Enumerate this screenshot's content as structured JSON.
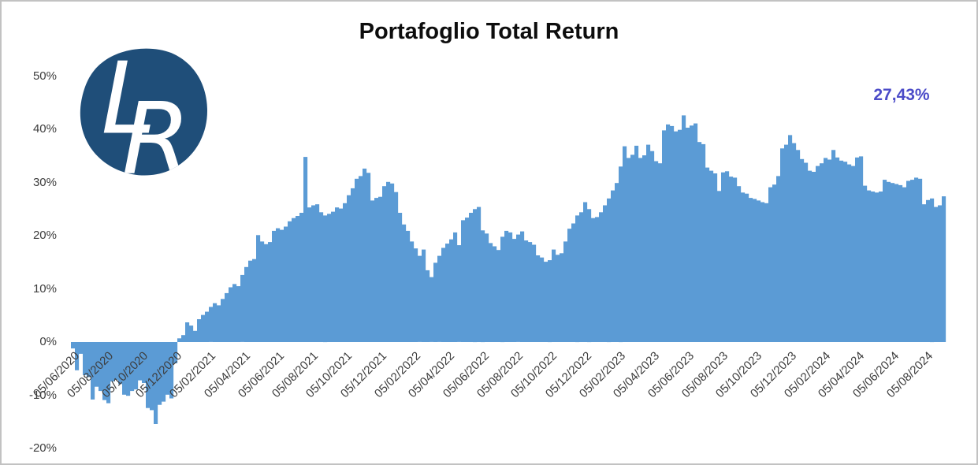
{
  "header": {
    "title": "Portafoglio Total Return"
  },
  "logo": {
    "letter_l": "L",
    "letter_r": "R",
    "background_color": "#1F4E79",
    "letter_color": "#FFFFFF"
  },
  "annotation": {
    "final_return_label": "27,43%",
    "final_return_value": 27.43,
    "color": "#4B4BC8"
  },
  "chart_data": {
    "type": "bar",
    "title": "Portafoglio Total Return",
    "ylabel": "",
    "xlabel": "",
    "ylim": [
      -20,
      50
    ],
    "grid": false,
    "legend": "none",
    "bar_color": "#5B9BD5",
    "axis_text_color": "#3d3d3d",
    "y_tick_values": [
      50,
      40,
      30,
      20,
      10,
      0,
      -10,
      -20
    ],
    "y_tick_labels": [
      "50%",
      "40%",
      "30%",
      "20%",
      "10%",
      "0%",
      "-10%",
      "-20%"
    ],
    "x_tick_labels": [
      "05/06/2020",
      "05/08/2020",
      "05/10/2020",
      "05/12/2020",
      "05/02/2021",
      "05/04/2021",
      "05/06/2021",
      "05/08/2021",
      "05/10/2021",
      "05/12/2021",
      "05/02/2022",
      "05/04/2022",
      "05/06/2022",
      "05/08/2022",
      "05/10/2022",
      "05/12/2022",
      "05/02/2023",
      "05/04/2023",
      "05/06/2023",
      "05/08/2023",
      "05/10/2023",
      "05/12/2023",
      "05/02/2024",
      "05/04/2024",
      "05/06/2024",
      "05/08/2024"
    ],
    "series": [
      {
        "name": "Portafoglio Total Return (%)",
        "sampling": "circa settimanale, giu 2020 - set 2024",
        "values": [
          -1.2,
          -5.3,
          -2.2,
          -6.2,
          -6.6,
          -10.8,
          -8.4,
          -9.2,
          -10.9,
          -11.5,
          -7.4,
          -7.1,
          -7.9,
          -9.9,
          -10.1,
          -9.2,
          -8.9,
          -7.2,
          -7.7,
          -12.4,
          -12.8,
          -15.4,
          -11.8,
          -11.2,
          -9.9,
          -10.6,
          -4.0,
          0.7,
          1.3,
          3.7,
          3.1,
          2.1,
          4.3,
          5.1,
          5.7,
          6.6,
          7.3,
          6.9,
          8.1,
          9.2,
          10.3,
          10.9,
          10.5,
          12.6,
          14.1,
          15.3,
          15.6,
          20.1,
          18.9,
          18.4,
          18.8,
          20.9,
          21.4,
          21.1,
          21.7,
          22.7,
          23.3,
          23.7,
          24.3,
          34.8,
          25.3,
          25.7,
          25.9,
          24.4,
          23.8,
          24.1,
          24.5,
          25.3,
          25.1,
          26.1,
          27.6,
          28.9,
          30.7,
          31.2,
          32.6,
          31.8,
          26.6,
          27.1,
          27.3,
          29.3,
          30.1,
          29.8,
          28.2,
          24.3,
          22.1,
          20.9,
          18.9,
          17.6,
          16.2,
          17.4,
          13.5,
          12.2,
          14.9,
          16.2,
          17.7,
          18.5,
          19.3,
          20.6,
          18.2,
          22.9,
          23.4,
          24.3,
          25.0,
          25.4,
          21.0,
          20.4,
          18.6,
          18.0,
          17.3,
          19.8,
          20.9,
          20.6,
          19.4,
          20.2,
          20.8,
          19.1,
          18.8,
          18.3,
          16.3,
          15.9,
          15.1,
          15.4,
          17.4,
          16.4,
          16.7,
          18.9,
          21.3,
          22.3,
          23.8,
          24.4,
          26.3,
          25.0,
          23.3,
          23.5,
          24.4,
          25.7,
          27.0,
          28.5,
          29.9,
          33.0,
          36.8,
          34.6,
          35.2,
          36.9,
          34.6,
          35.1,
          37.1,
          35.9,
          34.0,
          33.6,
          39.8,
          40.9,
          40.6,
          39.6,
          39.9,
          42.6,
          40.3,
          40.7,
          41.1,
          37.6,
          37.2,
          32.8,
          32.2,
          31.7,
          28.4,
          31.9,
          32.1,
          31.1,
          30.9,
          29.3,
          28.1,
          27.9,
          27.1,
          26.9,
          26.6,
          26.3,
          26.1,
          29.1,
          29.6,
          31.2,
          36.4,
          37.1,
          38.9,
          37.4,
          36.1,
          34.4,
          33.7,
          32.2,
          32.0,
          33.1,
          33.6,
          34.6,
          34.3,
          36.1,
          34.7,
          34.1,
          33.9,
          33.4,
          33.1,
          34.7,
          34.9,
          29.4,
          28.5,
          28.3,
          28.1,
          28.3,
          30.5,
          30.1,
          29.9,
          29.7,
          29.5,
          29.1,
          30.3,
          30.5,
          30.9,
          30.7,
          25.9,
          26.7,
          27.0,
          25.4,
          25.7,
          27.4
        ]
      }
    ]
  }
}
